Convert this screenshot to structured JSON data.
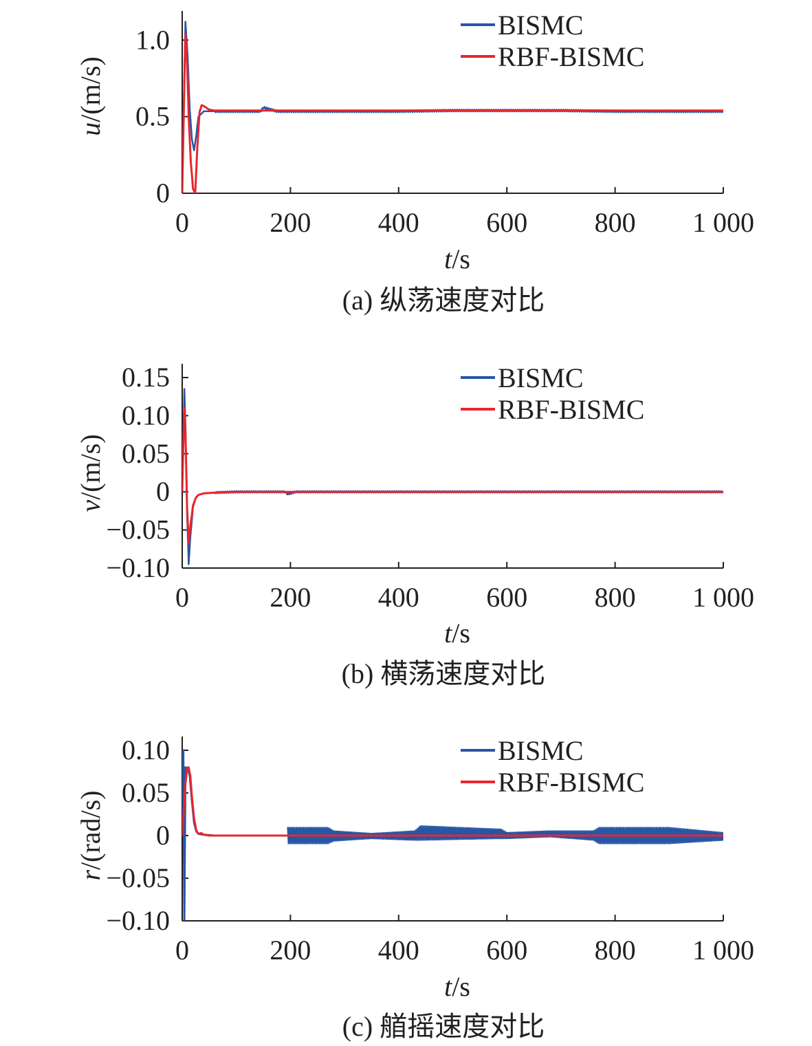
{
  "figure": {
    "panels": [
      {
        "ylabel_var": "u",
        "ylabel_unit": "/(m/s)",
        "xlabel_var": "t",
        "xlabel_unit": "/s",
        "caption": "(a) 纵荡速度对比"
      },
      {
        "ylabel_var": "v",
        "ylabel_unit": "/(m/s)",
        "xlabel_var": "t",
        "xlabel_unit": "/s",
        "caption": "(b) 横荡速度对比"
      },
      {
        "ylabel_var": "r",
        "ylabel_unit": "/(rad/s)",
        "xlabel_var": "t",
        "xlabel_unit": "/s",
        "caption": "(c) 艏摇速度对比"
      }
    ]
  },
  "chart_data": [
    {
      "type": "line",
      "title": "",
      "xlabel": "t/s",
      "ylabel": "u/(m/s)",
      "xlim": [
        0,
        1000
      ],
      "ylim": [
        0,
        1.1
      ],
      "x_ticks": [
        0,
        200,
        400,
        600,
        800,
        1000
      ],
      "x_tick_labels": [
        "0",
        "200",
        "400",
        "600",
        "800",
        "1 000"
      ],
      "y_ticks": [
        0,
        0.5,
        1.0
      ],
      "y_tick_labels": [
        "0",
        "0.5",
        "1.0"
      ],
      "legend": {
        "placement": "top-right",
        "entries": [
          "BISMC",
          "RBF-BISMC"
        ]
      },
      "grid": false,
      "series": [
        {
          "name": "BISMC",
          "color": "#2756a5",
          "x": [
            0,
            3,
            6,
            10,
            14,
            18,
            22,
            26,
            30,
            40,
            60,
            100,
            145,
            150,
            160,
            175,
            200,
            300,
            400,
            500,
            600,
            700,
            800,
            900,
            1000
          ],
          "y": [
            0,
            0.6,
            1.12,
            0.9,
            0.55,
            0.35,
            0.28,
            0.38,
            0.5,
            0.535,
            0.535,
            0.535,
            0.535,
            0.56,
            0.55,
            0.535,
            0.535,
            0.535,
            0.535,
            0.54,
            0.54,
            0.54,
            0.535,
            0.535,
            0.535
          ],
          "ripple": 0.006
        },
        {
          "name": "RBF-BISMC",
          "color": "#e8262d",
          "x": [
            0,
            3,
            6,
            9,
            12,
            16,
            20,
            24,
            28,
            32,
            36,
            42,
            50,
            60,
            80,
            100,
            200,
            400,
            600,
            800,
            1000
          ],
          "y": [
            0,
            0.55,
            1.04,
            0.85,
            0.5,
            0.2,
            0.03,
            0.0,
            0.3,
            0.53,
            0.575,
            0.565,
            0.545,
            0.54,
            0.54,
            0.54,
            0.54,
            0.54,
            0.54,
            0.54,
            0.54
          ],
          "ripple": 0
        }
      ]
    },
    {
      "type": "line",
      "title": "",
      "xlabel": "t/s",
      "ylabel": "v/(m/s)",
      "xlim": [
        0,
        1000
      ],
      "ylim": [
        -0.1,
        0.15
      ],
      "x_ticks": [
        0,
        200,
        400,
        600,
        800,
        1000
      ],
      "x_tick_labels": [
        "0",
        "200",
        "400",
        "600",
        "800",
        "1 000"
      ],
      "y_ticks": [
        -0.1,
        -0.05,
        0,
        0.05,
        0.1,
        0.15
      ],
      "y_tick_labels": [
        "−0.10",
        "−0.05",
        "0",
        "0.05",
        "0.10",
        "0.15"
      ],
      "legend": {
        "placement": "top-right",
        "entries": [
          "BISMC",
          "RBF-BISMC"
        ]
      },
      "grid": false,
      "series": [
        {
          "name": "BISMC",
          "color": "#2756a5",
          "x": [
            0,
            2,
            4,
            6,
            9,
            12,
            15,
            20,
            25,
            30,
            40,
            60,
            100,
            190,
            195,
            200,
            210,
            400,
            600,
            800,
            1000
          ],
          "y": [
            0,
            0.07,
            0.135,
            0.09,
            -0.03,
            -0.095,
            -0.06,
            -0.02,
            -0.008,
            -0.004,
            -0.002,
            -0.001,
            0,
            0,
            -0.003,
            -0.002,
            0,
            0,
            0,
            0,
            0
          ],
          "ripple": 0.001
        },
        {
          "name": "RBF-BISMC",
          "color": "#e8262d",
          "x": [
            0,
            2,
            4,
            6,
            9,
            12,
            15,
            20,
            25,
            30,
            40,
            60,
            100,
            200,
            400,
            600,
            800,
            1000
          ],
          "y": [
            0,
            0.06,
            0.11,
            0.08,
            -0.02,
            -0.068,
            -0.045,
            -0.018,
            -0.008,
            -0.004,
            -0.002,
            -0.001,
            0,
            0,
            0,
            0,
            0,
            0
          ],
          "ripple": 0
        }
      ]
    },
    {
      "type": "line",
      "title": "",
      "xlabel": "t/s",
      "ylabel": "r/(rad/s)",
      "xlim": [
        0,
        1000
      ],
      "ylim": [
        -0.1,
        0.1
      ],
      "x_ticks": [
        0,
        200,
        400,
        600,
        800,
        1000
      ],
      "x_tick_labels": [
        "0",
        "200",
        "400",
        "600",
        "800",
        "1 000"
      ],
      "y_ticks": [
        -0.1,
        -0.05,
        0,
        0.05,
        0.1
      ],
      "y_tick_labels": [
        "−0.10",
        "−0.05",
        "0",
        "0.05",
        "0.10"
      ],
      "legend": {
        "placement": "top-right",
        "entries": [
          "BISMC",
          "RBF-BISMC"
        ]
      },
      "grid": false,
      "series": [
        {
          "name": "BISMC",
          "color": "#2756a5",
          "x": [
            0,
            2,
            4,
            6,
            8,
            10,
            14,
            18,
            22,
            26,
            30,
            40,
            60,
            100,
            195
          ],
          "y": [
            0,
            0.1,
            -0.1,
            0.08,
            0.075,
            0.08,
            0.07,
            0.04,
            0.015,
            0.005,
            0.002,
            0.001,
            0,
            0,
            0
          ],
          "oscillation": {
            "x": [
              195,
              270,
              280,
              350,
              430,
              440,
              590,
              600,
              680,
              760,
              770,
              900,
              1000
            ],
            "upper": [
              0.01,
              0.01,
              0.006,
              0.003,
              0.006,
              0.012,
              0.008,
              0.004,
              0.006,
              0.006,
              0.01,
              0.01,
              0.004
            ],
            "lower": [
              -0.01,
              -0.01,
              -0.007,
              -0.004,
              -0.006,
              -0.006,
              -0.004,
              -0.004,
              -0.002,
              -0.006,
              -0.01,
              -0.01,
              -0.006
            ]
          }
        },
        {
          "name": "RBF-BISMC",
          "color": "#e8262d",
          "x": [
            0,
            3,
            6,
            9,
            12,
            15,
            18,
            22,
            26,
            30,
            35,
            40,
            50,
            60,
            100,
            200,
            400,
            600,
            800,
            1000
          ],
          "y": [
            0,
            0.03,
            0.06,
            0.078,
            0.08,
            0.07,
            0.045,
            0.02,
            0.006,
            0.002,
            0.003,
            0.001,
            0,
            0,
            0,
            0,
            0,
            0,
            0,
            0
          ]
        }
      ]
    }
  ]
}
